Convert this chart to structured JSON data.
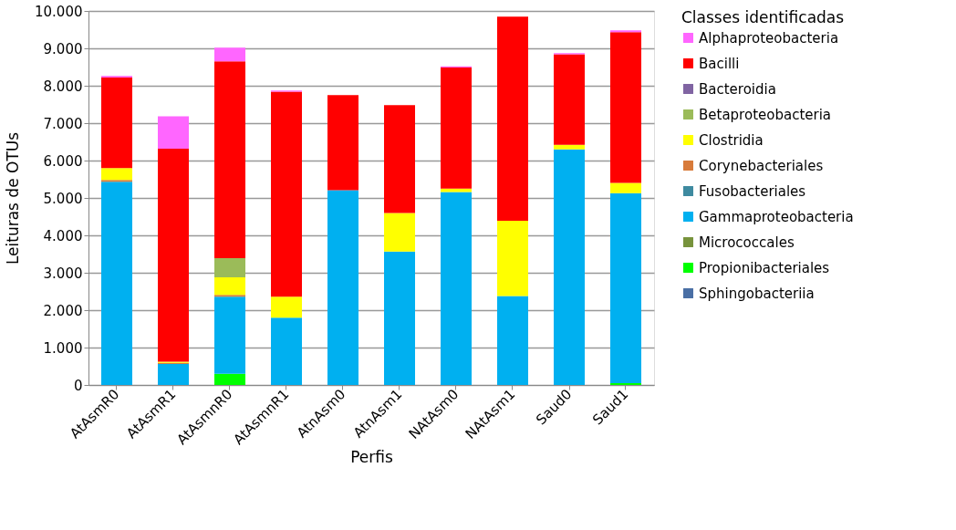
{
  "chart_data": {
    "type": "bar",
    "stacked": true,
    "xlabel": "Perfis",
    "ylabel": "Leituras de OTUs",
    "legend_title": "Classes identificadas",
    "legend": "right",
    "grid": "y",
    "categories": [
      "AtAsmR0",
      "AtAsmR1",
      "AtAsmnR0",
      "AtAsmnR1",
      "AtnAsm0",
      "AtnAsm1",
      "NAtAsm0",
      "NAtAsm1",
      "Saud0",
      "Saud1"
    ],
    "ylim": [
      0,
      10000
    ],
    "yticks": [
      {
        "value": 0,
        "label": "0"
      },
      {
        "value": 1000,
        "label": "1.000"
      },
      {
        "value": 2000,
        "label": "2.000"
      },
      {
        "value": 3000,
        "label": "3.000"
      },
      {
        "value": 4000,
        "label": "4.000"
      },
      {
        "value": 5000,
        "label": "5.000"
      },
      {
        "value": 6000,
        "label": "6.000"
      },
      {
        "value": 7000,
        "label": "7.000"
      },
      {
        "value": 8000,
        "label": "8.000"
      },
      {
        "value": 9000,
        "label": "9.000"
      },
      {
        "value": 10000,
        "label": "10.000"
      }
    ],
    "series": [
      {
        "name": "Sphingobacteriia",
        "color": "#4a6fa5",
        "values": [
          0,
          0,
          0,
          0,
          0,
          0,
          0,
          0,
          0,
          0
        ]
      },
      {
        "name": "Propionibacteriales",
        "color": "#00ff00",
        "values": [
          0,
          0,
          300,
          0,
          0,
          0,
          0,
          0,
          0,
          50
        ]
      },
      {
        "name": "Micrococcales",
        "color": "#77933c",
        "values": [
          0,
          0,
          0,
          0,
          0,
          0,
          0,
          0,
          0,
          0
        ]
      },
      {
        "name": "Gammaproteobacteria",
        "color": "#00b0f0",
        "values": [
          5430,
          560,
          2060,
          1800,
          5210,
          3570,
          5160,
          2380,
          6300,
          5080
        ]
      },
      {
        "name": "Fusobacteriales",
        "color": "#3e8aa0",
        "values": [
          0,
          0,
          0,
          0,
          0,
          0,
          0,
          0,
          0,
          0
        ]
      },
      {
        "name": "Corynebacteriales",
        "color": "#d87b3a",
        "values": [
          50,
          30,
          50,
          0,
          0,
          0,
          0,
          0,
          0,
          0
        ]
      },
      {
        "name": "Clostridia",
        "color": "#ffff00",
        "values": [
          320,
          30,
          470,
          560,
          0,
          1030,
          90,
          2010,
          120,
          270
        ]
      },
      {
        "name": "Betaproteobacteria",
        "color": "#9bbb59",
        "values": [
          0,
          0,
          510,
          0,
          0,
          0,
          0,
          0,
          0,
          0
        ]
      },
      {
        "name": "Bacteroidia",
        "color": "#8064a2",
        "values": [
          0,
          0,
          0,
          0,
          0,
          0,
          0,
          0,
          0,
          0
        ]
      },
      {
        "name": "Bacilli",
        "color": "#ff0000",
        "values": [
          2420,
          5700,
          5260,
          5480,
          2540,
          2880,
          3240,
          5460,
          2420,
          4030
        ]
      },
      {
        "name": "Alphaproteobacteria",
        "color": "#ff66ff",
        "values": [
          40,
          860,
          370,
          30,
          0,
          0,
          30,
          0,
          30,
          50
        ]
      }
    ]
  }
}
